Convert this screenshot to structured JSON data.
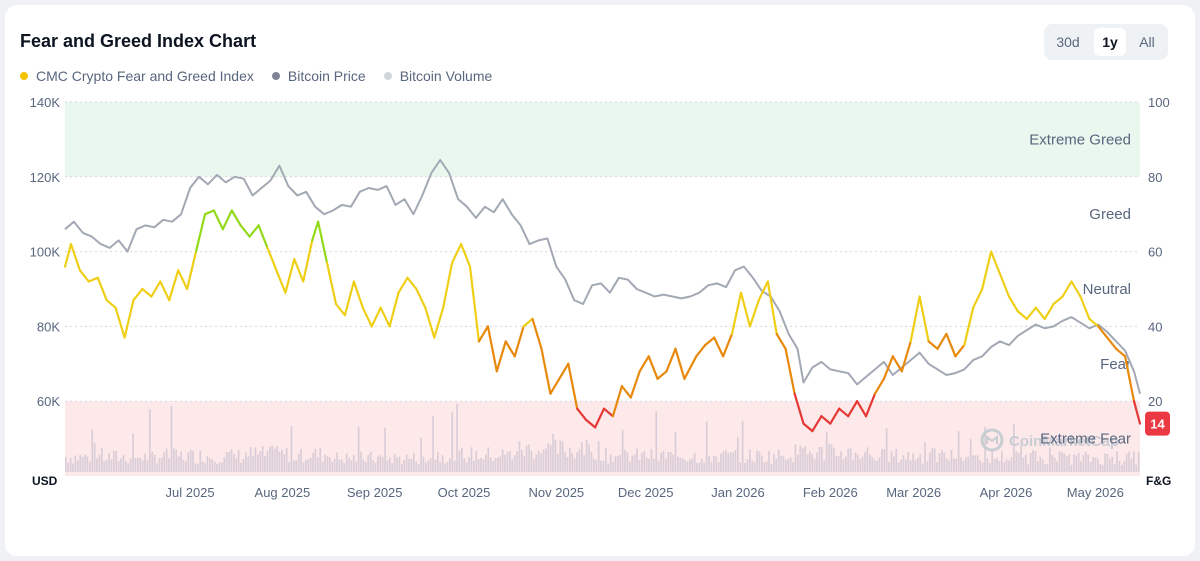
{
  "header": {
    "title": "Fear and Greed Index Chart",
    "range_buttons": [
      {
        "label": "30d",
        "active": false
      },
      {
        "label": "1y",
        "active": true
      },
      {
        "label": "All",
        "active": false
      }
    ]
  },
  "legend": [
    {
      "label": "CMC Crypto Fear and Greed Index",
      "color": "#f2c200"
    },
    {
      "label": "Bitcoin Price",
      "color": "#7f8595"
    },
    {
      "label": "Bitcoin Volume",
      "color": "#cfd6dc"
    }
  ],
  "watermark": "CoinMarketCap",
  "chart_data": {
    "type": "line",
    "x_ticks": [
      "Jul 2025",
      "Aug 2025",
      "Sep 2025",
      "Oct 2025",
      "Nov 2025",
      "Dec 2025",
      "Jan 2026",
      "Feb 2026",
      "Mar 2026",
      "Apr 2026",
      "May 2026"
    ],
    "x_range": [
      "2025-06-03",
      "2026-05-30"
    ],
    "y_left": {
      "unit": "USD",
      "ticks": [
        "60K",
        "80K",
        "100K",
        "120K",
        "140K"
      ],
      "range": [
        40000,
        140000
      ]
    },
    "y_right": {
      "unit": "F&G",
      "ticks": [
        "20",
        "40",
        "60",
        "80",
        "100"
      ],
      "range": [
        0,
        100
      ]
    },
    "zones": [
      {
        "label": "Extreme Greed",
        "from": 80,
        "to": 100,
        "color": "#eaf7ef"
      },
      {
        "label": "Greed",
        "from": 60,
        "to": 80
      },
      {
        "label": "Neutral",
        "from": 40,
        "to": 60
      },
      {
        "label": "Fear",
        "from": 20,
        "to": 40
      },
      {
        "label": "Extreme Fear",
        "from": 0,
        "to": 20,
        "color": "#fde8ea"
      }
    ],
    "current_value": "14",
    "current_color": "#ea3943",
    "grid": true,
    "series": [
      {
        "name": "CMC Crypto Fear and Greed Index",
        "axis": "right",
        "color_scale": [
          {
            "max": 20,
            "color": "#e53935"
          },
          {
            "max": 40,
            "color": "#e8890c"
          },
          {
            "max": 60,
            "color": "#efcf16"
          },
          {
            "max": 80,
            "color": "#93d91a"
          }
        ],
        "points": [
          [
            "2025-06-03",
            56
          ],
          [
            "2025-06-05",
            62
          ],
          [
            "2025-06-08",
            55
          ],
          [
            "2025-06-11",
            52
          ],
          [
            "2025-06-14",
            53
          ],
          [
            "2025-06-17",
            47
          ],
          [
            "2025-06-20",
            45
          ],
          [
            "2025-06-23",
            37
          ],
          [
            "2025-06-26",
            47
          ],
          [
            "2025-06-29",
            50
          ],
          [
            "2025-07-02",
            48
          ],
          [
            "2025-07-05",
            52
          ],
          [
            "2025-07-08",
            47
          ],
          [
            "2025-07-11",
            55
          ],
          [
            "2025-07-14",
            50
          ],
          [
            "2025-07-17",
            60
          ],
          [
            "2025-07-20",
            70
          ],
          [
            "2025-07-23",
            71
          ],
          [
            "2025-07-26",
            66
          ],
          [
            "2025-07-29",
            71
          ],
          [
            "2025-08-01",
            67
          ],
          [
            "2025-08-04",
            64
          ],
          [
            "2025-08-07",
            67
          ],
          [
            "2025-08-10",
            61
          ],
          [
            "2025-08-13",
            55
          ],
          [
            "2025-08-16",
            49
          ],
          [
            "2025-08-19",
            58
          ],
          [
            "2025-08-22",
            52
          ],
          [
            "2025-08-25",
            63
          ],
          [
            "2025-08-27",
            68
          ],
          [
            "2025-08-30",
            57
          ],
          [
            "2025-09-02",
            46
          ],
          [
            "2025-09-05",
            43
          ],
          [
            "2025-09-08",
            52
          ],
          [
            "2025-09-11",
            45
          ],
          [
            "2025-09-14",
            40
          ],
          [
            "2025-09-17",
            45
          ],
          [
            "2025-09-20",
            40
          ],
          [
            "2025-09-23",
            49
          ],
          [
            "2025-09-26",
            53
          ],
          [
            "2025-09-29",
            50
          ],
          [
            "2025-10-02",
            45
          ],
          [
            "2025-10-05",
            37
          ],
          [
            "2025-10-08",
            45
          ],
          [
            "2025-10-11",
            57
          ],
          [
            "2025-10-14",
            62
          ],
          [
            "2025-10-17",
            56
          ],
          [
            "2025-10-20",
            36
          ],
          [
            "2025-10-23",
            40
          ],
          [
            "2025-10-26",
            28
          ],
          [
            "2025-10-29",
            36
          ],
          [
            "2025-11-01",
            32
          ],
          [
            "2025-11-04",
            40
          ],
          [
            "2025-11-07",
            42
          ],
          [
            "2025-11-10",
            34
          ],
          [
            "2025-11-13",
            22
          ],
          [
            "2025-11-16",
            26
          ],
          [
            "2025-11-19",
            30
          ],
          [
            "2025-11-22",
            18
          ],
          [
            "2025-11-25",
            15
          ],
          [
            "2025-11-28",
            13
          ],
          [
            "2025-12-01",
            18
          ],
          [
            "2025-12-04",
            16
          ],
          [
            "2025-12-07",
            24
          ],
          [
            "2025-12-10",
            21
          ],
          [
            "2025-12-13",
            28
          ],
          [
            "2025-12-16",
            32
          ],
          [
            "2025-12-19",
            26
          ],
          [
            "2025-12-22",
            28
          ],
          [
            "2025-12-25",
            34
          ],
          [
            "2025-12-28",
            26
          ],
          [
            "2026-01-01",
            32
          ],
          [
            "2026-01-04",
            35
          ],
          [
            "2026-01-07",
            37
          ],
          [
            "2026-01-10",
            32
          ],
          [
            "2026-01-13",
            38
          ],
          [
            "2026-01-16",
            49
          ],
          [
            "2026-01-19",
            40
          ],
          [
            "2026-01-22",
            47
          ],
          [
            "2026-01-25",
            52
          ],
          [
            "2026-01-28",
            38
          ],
          [
            "2026-01-31",
            34
          ],
          [
            "2026-02-03",
            22
          ],
          [
            "2026-02-06",
            14
          ],
          [
            "2026-02-09",
            12
          ],
          [
            "2026-02-12",
            16
          ],
          [
            "2026-02-15",
            14
          ],
          [
            "2026-02-18",
            18
          ],
          [
            "2026-02-21",
            16
          ],
          [
            "2026-02-24",
            20
          ],
          [
            "2026-02-27",
            16
          ],
          [
            "2026-03-02",
            22
          ],
          [
            "2026-03-05",
            26
          ],
          [
            "2026-03-08",
            32
          ],
          [
            "2026-03-11",
            28
          ],
          [
            "2026-03-14",
            36
          ],
          [
            "2026-03-17",
            48
          ],
          [
            "2026-03-20",
            36
          ],
          [
            "2026-03-23",
            34
          ],
          [
            "2026-03-26",
            38
          ],
          [
            "2026-03-29",
            32
          ],
          [
            "2026-04-01",
            35
          ],
          [
            "2026-04-04",
            45
          ],
          [
            "2026-04-07",
            50
          ],
          [
            "2026-04-10",
            60
          ],
          [
            "2026-04-13",
            54
          ],
          [
            "2026-04-16",
            48
          ],
          [
            "2026-04-19",
            44
          ],
          [
            "2026-04-22",
            42
          ],
          [
            "2026-04-25",
            45
          ],
          [
            "2026-04-28",
            42
          ],
          [
            "2026-05-01",
            46
          ],
          [
            "2026-05-04",
            48
          ],
          [
            "2026-05-07",
            52
          ],
          [
            "2026-05-10",
            48
          ],
          [
            "2026-05-13",
            42
          ],
          [
            "2026-05-16",
            40
          ],
          [
            "2026-05-19",
            37
          ],
          [
            "2026-05-22",
            34
          ],
          [
            "2026-05-25",
            32
          ],
          [
            "2026-05-28",
            20
          ],
          [
            "2026-05-30",
            14
          ]
        ]
      },
      {
        "name": "Bitcoin Price",
        "axis": "left",
        "color": "#a3a9b4",
        "points": [
          [
            "2025-06-03",
            106000
          ],
          [
            "2025-06-06",
            108000
          ],
          [
            "2025-06-09",
            105000
          ],
          [
            "2025-06-12",
            104000
          ],
          [
            "2025-06-15",
            102000
          ],
          [
            "2025-06-18",
            101000
          ],
          [
            "2025-06-21",
            103000
          ],
          [
            "2025-06-24",
            100000
          ],
          [
            "2025-06-27",
            106000
          ],
          [
            "2025-06-30",
            107000
          ],
          [
            "2025-07-03",
            106500
          ],
          [
            "2025-07-06",
            108500
          ],
          [
            "2025-07-09",
            108000
          ],
          [
            "2025-07-12",
            110000
          ],
          [
            "2025-07-15",
            117000
          ],
          [
            "2025-07-18",
            120000
          ],
          [
            "2025-07-21",
            118000
          ],
          [
            "2025-07-24",
            120500
          ],
          [
            "2025-07-27",
            118500
          ],
          [
            "2025-07-30",
            120000
          ],
          [
            "2025-08-02",
            119500
          ],
          [
            "2025-08-05",
            115000
          ],
          [
            "2025-08-08",
            117000
          ],
          [
            "2025-08-11",
            119000
          ],
          [
            "2025-08-14",
            123000
          ],
          [
            "2025-08-17",
            117500
          ],
          [
            "2025-08-20",
            115000
          ],
          [
            "2025-08-23",
            116000
          ],
          [
            "2025-08-26",
            112000
          ],
          [
            "2025-08-29",
            110000
          ],
          [
            "2025-09-01",
            111000
          ],
          [
            "2025-09-04",
            112500
          ],
          [
            "2025-09-07",
            112000
          ],
          [
            "2025-09-10",
            116000
          ],
          [
            "2025-09-13",
            117000
          ],
          [
            "2025-09-16",
            116500
          ],
          [
            "2025-09-19",
            117500
          ],
          [
            "2025-09-22",
            112500
          ],
          [
            "2025-09-25",
            114000
          ],
          [
            "2025-09-28",
            110000
          ],
          [
            "2025-10-01",
            115000
          ],
          [
            "2025-10-04",
            121000
          ],
          [
            "2025-10-07",
            124500
          ],
          [
            "2025-10-10",
            121000
          ],
          [
            "2025-10-13",
            114000
          ],
          [
            "2025-10-16",
            112000
          ],
          [
            "2025-10-19",
            109000
          ],
          [
            "2025-10-22",
            112000
          ],
          [
            "2025-10-25",
            110500
          ],
          [
            "2025-10-28",
            114000
          ],
          [
            "2025-10-31",
            110000
          ],
          [
            "2025-11-03",
            107000
          ],
          [
            "2025-11-06",
            102000
          ],
          [
            "2025-11-09",
            103000
          ],
          [
            "2025-11-12",
            103500
          ],
          [
            "2025-11-15",
            96000
          ],
          [
            "2025-11-18",
            92500
          ],
          [
            "2025-11-21",
            87000
          ],
          [
            "2025-11-24",
            86000
          ],
          [
            "2025-11-27",
            91000
          ],
          [
            "2025-11-30",
            91500
          ],
          [
            "2025-12-03",
            89000
          ],
          [
            "2025-12-06",
            93000
          ],
          [
            "2025-12-09",
            92500
          ],
          [
            "2025-12-12",
            90000
          ],
          [
            "2025-12-15",
            89000
          ],
          [
            "2025-12-18",
            88000
          ],
          [
            "2025-12-21",
            88500
          ],
          [
            "2025-12-24",
            88000
          ],
          [
            "2025-12-27",
            87500
          ],
          [
            "2025-12-30",
            88000
          ],
          [
            "2026-01-02",
            89000
          ],
          [
            "2026-01-05",
            91000
          ],
          [
            "2026-01-08",
            91500
          ],
          [
            "2026-01-11",
            90500
          ],
          [
            "2026-01-14",
            95000
          ],
          [
            "2026-01-17",
            96000
          ],
          [
            "2026-01-20",
            93000
          ],
          [
            "2026-01-23",
            89500
          ],
          [
            "2026-01-26",
            88000
          ],
          [
            "2026-01-29",
            84000
          ],
          [
            "2026-02-01",
            78000
          ],
          [
            "2026-02-04",
            74000
          ],
          [
            "2026-02-06",
            65000
          ],
          [
            "2026-02-09",
            69000
          ],
          [
            "2026-02-12",
            70500
          ],
          [
            "2026-02-15",
            68500
          ],
          [
            "2026-02-18",
            68000
          ],
          [
            "2026-02-21",
            67500
          ],
          [
            "2026-02-24",
            64500
          ],
          [
            "2026-02-27",
            66500
          ],
          [
            "2026-03-02",
            68500
          ],
          [
            "2026-03-05",
            70500
          ],
          [
            "2026-03-08",
            67000
          ],
          [
            "2026-03-11",
            69000
          ],
          [
            "2026-03-14",
            71000
          ],
          [
            "2026-03-17",
            73000
          ],
          [
            "2026-03-20",
            70000
          ],
          [
            "2026-03-23",
            68500
          ],
          [
            "2026-03-26",
            67000
          ],
          [
            "2026-03-29",
            67500
          ],
          [
            "2026-04-01",
            68500
          ],
          [
            "2026-04-04",
            71000
          ],
          [
            "2026-04-07",
            72000
          ],
          [
            "2026-04-10",
            74500
          ],
          [
            "2026-04-13",
            76000
          ],
          [
            "2026-04-16",
            75000
          ],
          [
            "2026-04-19",
            77500
          ],
          [
            "2026-04-22",
            79000
          ],
          [
            "2026-04-25",
            80500
          ],
          [
            "2026-04-28",
            79500
          ],
          [
            "2026-05-01",
            80000
          ],
          [
            "2026-05-04",
            81500
          ],
          [
            "2026-05-07",
            82500
          ],
          [
            "2026-05-10",
            81000
          ],
          [
            "2026-05-13",
            79500
          ],
          [
            "2026-05-16",
            80500
          ],
          [
            "2026-05-19",
            78500
          ],
          [
            "2026-05-22",
            76000
          ],
          [
            "2026-05-25",
            73500
          ],
          [
            "2026-05-28",
            68000
          ],
          [
            "2026-05-30",
            62000
          ]
        ]
      },
      {
        "name": "Bitcoin Volume",
        "color": "#d9ced7",
        "note_scale": "relative 0-1",
        "monthly_levels": [
          0.28,
          0.3,
          0.33,
          0.26,
          0.32,
          0.42,
          0.3,
          0.3,
          0.36,
          0.3,
          0.28,
          0.26
        ]
      }
    ]
  }
}
